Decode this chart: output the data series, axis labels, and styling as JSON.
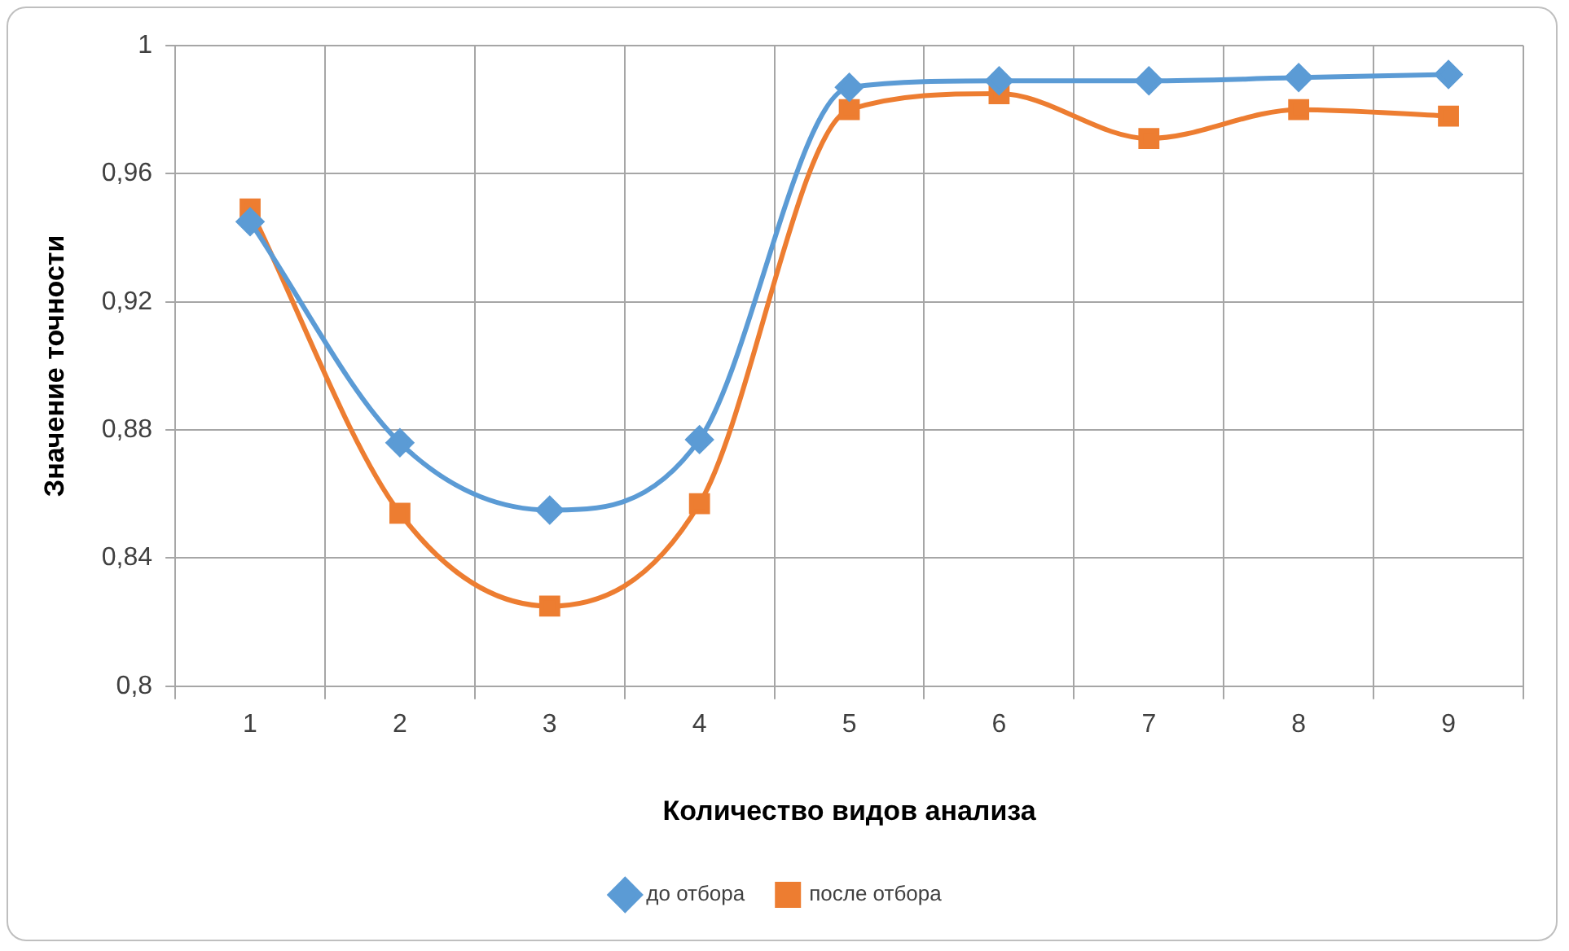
{
  "chart_data": {
    "type": "line",
    "xlabel": "Количество видов анализа",
    "ylabel": "Значение точности",
    "categories": [
      "1",
      "2",
      "3",
      "4",
      "5",
      "6",
      "7",
      "8",
      "9"
    ],
    "series": [
      {
        "name": "до отбора",
        "color": "#5b9bd5",
        "marker": "diamond",
        "values": [
          0.945,
          0.876,
          0.855,
          0.877,
          0.987,
          0.989,
          0.989,
          0.99,
          0.991
        ]
      },
      {
        "name": "после отбора",
        "color": "#ed7d31",
        "marker": "square",
        "values": [
          0.949,
          0.854,
          0.825,
          0.857,
          0.98,
          0.985,
          0.971,
          0.98,
          0.978
        ]
      }
    ],
    "ylim": [
      0.8,
      1
    ],
    "yticks": [
      {
        "value": 0.8,
        "label": "0,8"
      },
      {
        "value": 0.84,
        "label": "0,84"
      },
      {
        "value": 0.88,
        "label": "0,88"
      },
      {
        "value": 0.92,
        "label": "0,92"
      },
      {
        "value": 0.96,
        "label": "0,96"
      },
      {
        "value": 1,
        "label": "1"
      }
    ],
    "grid": true,
    "legend": "bottom",
    "line_style": "solid"
  }
}
